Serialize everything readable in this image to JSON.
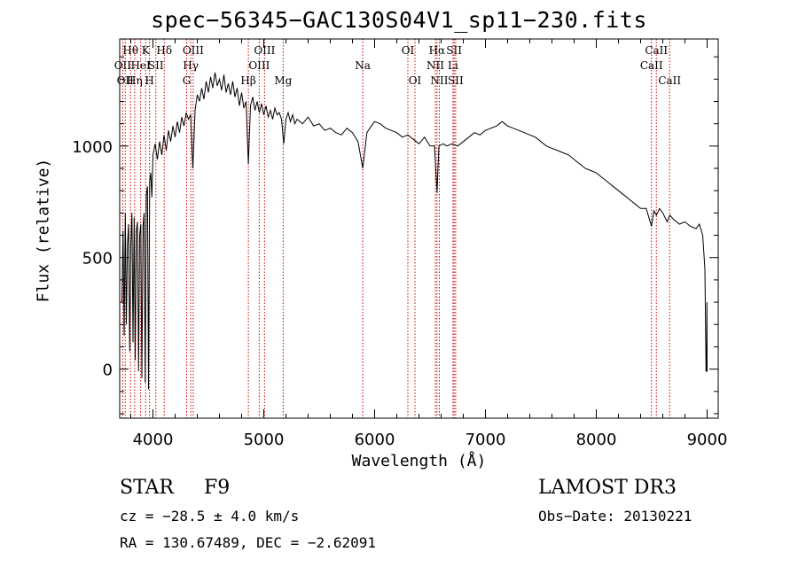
{
  "chart_data": {
    "type": "line",
    "title": "spec−56345−GAC130S04V1_sp11−230.fits",
    "xlabel": "Wavelength (Å)",
    "ylabel": "Flux (relative)",
    "xlim": [
      3700,
      9100
    ],
    "ylim": [
      -220,
      1480
    ],
    "xticks": [
      {
        "value": 4000,
        "label": "4000"
      },
      {
        "value": 5000,
        "label": "5000"
      },
      {
        "value": 6000,
        "label": "6000"
      },
      {
        "value": 7000,
        "label": "7000"
      },
      {
        "value": 8000,
        "label": "8000"
      },
      {
        "value": 9000,
        "label": "9000"
      }
    ],
    "yticks": [
      {
        "value": 0,
        "label": "0"
      },
      {
        "value": 500,
        "label": "500"
      },
      {
        "value": 1000,
        "label": "1000"
      }
    ],
    "grid": false,
    "series": [
      {
        "name": "flux",
        "color": "#000000",
        "x": [
          3720,
          3730,
          3740,
          3750,
          3760,
          3770,
          3780,
          3790,
          3800,
          3810,
          3820,
          3830,
          3840,
          3850,
          3860,
          3870,
          3880,
          3890,
          3900,
          3910,
          3920,
          3930,
          3940,
          3950,
          3960,
          3970,
          3980,
          3990,
          4000,
          4020,
          4040,
          4060,
          4080,
          4100,
          4120,
          4140,
          4160,
          4180,
          4200,
          4220,
          4240,
          4260,
          4280,
          4300,
          4320,
          4340,
          4360,
          4380,
          4400,
          4420,
          4440,
          4460,
          4480,
          4500,
          4520,
          4540,
          4560,
          4580,
          4600,
          4620,
          4640,
          4660,
          4680,
          4700,
          4720,
          4740,
          4760,
          4780,
          4800,
          4820,
          4840,
          4861,
          4880,
          4900,
          4920,
          4940,
          4960,
          4980,
          5000,
          5020,
          5040,
          5060,
          5080,
          5100,
          5120,
          5140,
          5160,
          5180,
          5200,
          5220,
          5240,
          5260,
          5280,
          5300,
          5350,
          5400,
          5450,
          5500,
          5550,
          5600,
          5650,
          5700,
          5750,
          5800,
          5850,
          5893,
          5930,
          5970,
          6000,
          6050,
          6100,
          6150,
          6200,
          6250,
          6300,
          6350,
          6400,
          6450,
          6500,
          6540,
          6563,
          6580,
          6620,
          6650,
          6700,
          6750,
          6800,
          6850,
          6900,
          6950,
          7000,
          7050,
          7100,
          7150,
          7200,
          7250,
          7300,
          7350,
          7400,
          7450,
          7500,
          7550,
          7600,
          7650,
          7700,
          7750,
          7800,
          7850,
          7900,
          7950,
          8000,
          8050,
          8100,
          8150,
          8200,
          8250,
          8300,
          8350,
          8400,
          8450,
          8498,
          8520,
          8542,
          8570,
          8600,
          8640,
          8662,
          8700,
          8750,
          8800,
          8850,
          8900,
          8930,
          8960,
          8980,
          8990,
          8995,
          8998,
          9000
        ],
        "y": [
          300,
          620,
          150,
          700,
          200,
          560,
          650,
          80,
          550,
          700,
          120,
          680,
          40,
          620,
          660,
          -10,
          600,
          650,
          -40,
          640,
          700,
          -60,
          780,
          820,
          -90,
          840,
          880,
          770,
          960,
          1010,
          940,
          1020,
          960,
          1050,
          980,
          1070,
          1020,
          1090,
          1040,
          1110,
          1060,
          1130,
          1090,
          1150,
          1120,
          1140,
          900,
          1160,
          1230,
          1200,
          1260,
          1210,
          1290,
          1240,
          1310,
          1260,
          1330,
          1270,
          1300,
          1250,
          1320,
          1240,
          1280,
          1230,
          1290,
          1220,
          1260,
          1180,
          1240,
          1170,
          1200,
          920,
          1180,
          1220,
          1160,
          1200,
          1150,
          1190,
          1140,
          1180,
          1130,
          1160,
          1120,
          1170,
          1140,
          1150,
          1120,
          1010,
          1120,
          1150,
          1110,
          1140,
          1100,
          1120,
          1100,
          1130,
          1090,
          1100,
          1070,
          1080,
          1060,
          1050,
          1080,
          1060,
          1020,
          900,
          1060,
          1090,
          1110,
          1100,
          1080,
          1070,
          1060,
          1040,
          1050,
          1030,
          1010,
          1040,
          1000,
          1000,
          790,
          1000,
          1010,
          1000,
          1010,
          1000,
          1020,
          1040,
          1060,
          1050,
          1070,
          1080,
          1090,
          1110,
          1090,
          1080,
          1070,
          1060,
          1050,
          1040,
          1020,
          1000,
          990,
          980,
          970,
          960,
          940,
          920,
          900,
          890,
          880,
          860,
          840,
          820,
          800,
          780,
          760,
          740,
          720,
          720,
          640,
          710,
          690,
          720,
          700,
          660,
          690,
          670,
          650,
          660,
          640,
          630,
          650,
          600,
          450,
          -10,
          -10,
          300,
          -10
        ]
      }
    ],
    "line_markers": [
      {
        "wavelength": 3727,
        "label": "OII",
        "row": 2
      },
      {
        "wavelength": 3750,
        "label": "OII",
        "row": 3
      },
      {
        "wavelength": 3798,
        "label": "Hθ",
        "row": 1
      },
      {
        "wavelength": 3835,
        "label": "Hη",
        "row": 3
      },
      {
        "wavelength": 3889,
        "label": "HeI",
        "row": 2
      },
      {
        "wavelength": 3934,
        "label": "K",
        "row": 1
      },
      {
        "wavelength": 3969,
        "label": "H",
        "row": 3
      },
      {
        "wavelength": 4026,
        "label": "SII",
        "row": 2
      },
      {
        "wavelength": 4102,
        "label": "Hδ",
        "row": 1
      },
      {
        "wavelength": 4304,
        "label": "G",
        "row": 3
      },
      {
        "wavelength": 4341,
        "label": "Hγ",
        "row": 2
      },
      {
        "wavelength": 4363,
        "label": "OIII",
        "row": 1
      },
      {
        "wavelength": 4861,
        "label": "Hβ",
        "row": 3
      },
      {
        "wavelength": 4959,
        "label": "OIII",
        "row": 2
      },
      {
        "wavelength": 5007,
        "label": "OIII",
        "row": 1
      },
      {
        "wavelength": 5175,
        "label": "Mg",
        "row": 3
      },
      {
        "wavelength": 5893,
        "label": "Na",
        "row": 2
      },
      {
        "wavelength": 6300,
        "label": "OI",
        "row": 1
      },
      {
        "wavelength": 6364,
        "label": "OI",
        "row": 3
      },
      {
        "wavelength": 6548,
        "label": "NII",
        "row": 2
      },
      {
        "wavelength": 6563,
        "label": "Hα",
        "row": 1
      },
      {
        "wavelength": 6584,
        "label": "NII",
        "row": 3
      },
      {
        "wavelength": 6707,
        "label": "Li",
        "row": 2
      },
      {
        "wavelength": 6717,
        "label": "SII",
        "row": 1
      },
      {
        "wavelength": 6731,
        "label": "SII",
        "row": 3
      },
      {
        "wavelength": 8498,
        "label": "CaII",
        "row": 2
      },
      {
        "wavelength": 8542,
        "label": "CaII",
        "row": 1
      },
      {
        "wavelength": 8662,
        "label": "CaII",
        "row": 3
      }
    ],
    "marker_color": "#cc0000"
  },
  "info": {
    "object_type": "STAR",
    "subclass": "F9",
    "survey": "LAMOST DR3",
    "redshift": "cz = −28.5 ± 4.0 km/s",
    "obs_date": "Obs−Date: 20130221",
    "coordinates": "RA = 130.67489, DEC =  −2.62091"
  }
}
